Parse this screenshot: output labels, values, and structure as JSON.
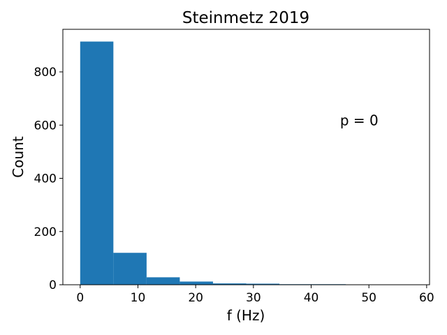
{
  "chart_data": {
    "type": "bar",
    "title": "Steinmetz 2019",
    "xlabel": "f (Hz)",
    "ylabel": "Count",
    "annotation": {
      "text": "p = 0",
      "x": 45,
      "y": 600
    },
    "xlim": [
      -3,
      60.5
    ],
    "ylim": [
      0,
      960
    ],
    "xticks": [
      0,
      10,
      20,
      30,
      40,
      50,
      60
    ],
    "yticks": [
      0,
      200,
      400,
      600,
      800
    ],
    "bins": [
      {
        "start": 0.0,
        "end": 5.75,
        "count": 914
      },
      {
        "start": 5.75,
        "end": 11.5,
        "count": 120
      },
      {
        "start": 11.5,
        "end": 17.25,
        "count": 28
      },
      {
        "start": 17.25,
        "end": 23.0,
        "count": 12
      },
      {
        "start": 23.0,
        "end": 28.75,
        "count": 5
      },
      {
        "start": 28.75,
        "end": 34.5,
        "count": 4
      },
      {
        "start": 34.5,
        "end": 40.25,
        "count": 2
      },
      {
        "start": 40.25,
        "end": 46.0,
        "count": 2
      },
      {
        "start": 46.0,
        "end": 51.75,
        "count": 0
      },
      {
        "start": 51.75,
        "end": 57.5,
        "count": 1
      }
    ],
    "bar_color": "#1f77b4",
    "grid": false,
    "legend": "none"
  }
}
